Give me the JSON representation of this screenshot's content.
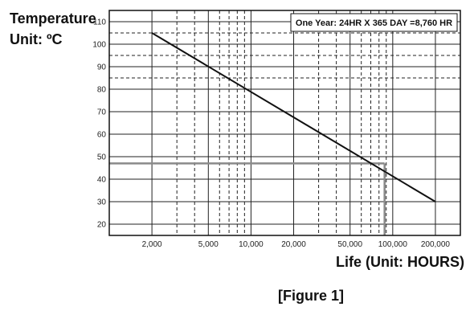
{
  "chart_data": {
    "type": "line",
    "ylabel_line1": "Temperature",
    "ylabel_line2": "Unit: ºC",
    "xlabel": "Life (Unit: HOURS)",
    "caption": "[Figure 1]",
    "annotation": "One Year: 24HR X 365 DAY =8,760 HR",
    "x_scale": "log",
    "xlim": [
      1000,
      300000
    ],
    "ylim": [
      15,
      115
    ],
    "x_ticks": [
      {
        "value": 2000,
        "label": "2,000"
      },
      {
        "value": 5000,
        "label": "5,000"
      },
      {
        "value": 10000,
        "label": "10,000"
      },
      {
        "value": 20000,
        "label": "20,000"
      },
      {
        "value": 50000,
        "label": "50,000"
      },
      {
        "value": 100000,
        "label": "100,000"
      },
      {
        "value": 200000,
        "label": "200,000"
      }
    ],
    "y_ticks": [
      {
        "value": 110,
        "label": "110"
      },
      {
        "value": 100,
        "label": "100"
      },
      {
        "value": 90,
        "label": "90"
      },
      {
        "value": 80,
        "label": "80"
      },
      {
        "value": 70,
        "label": "70"
      },
      {
        "value": 60,
        "label": "60"
      },
      {
        "value": 50,
        "label": "50"
      },
      {
        "value": 40,
        "label": "40"
      },
      {
        "value": 30,
        "label": "30"
      },
      {
        "value": 20,
        "label": "20"
      }
    ],
    "solid_hlines": [
      110,
      100,
      90,
      80,
      70,
      60,
      50,
      40,
      30,
      20
    ],
    "dashed_hlines": [
      105,
      95,
      85
    ],
    "dashed_vlines": [
      3000,
      4000,
      6000,
      7000,
      8000,
      9000,
      30000,
      40000,
      60000,
      70000,
      80000,
      90000
    ],
    "series": [
      {
        "points": [
          {
            "x": 2000,
            "y": 105
          },
          {
            "x": 200000,
            "y": 30
          }
        ]
      }
    ],
    "reference_y": 47,
    "reference_x": 87600,
    "colors": {
      "line": "#111111",
      "grid": "#222222",
      "reference": "#8a8a8a",
      "frame": "#111111"
    }
  }
}
